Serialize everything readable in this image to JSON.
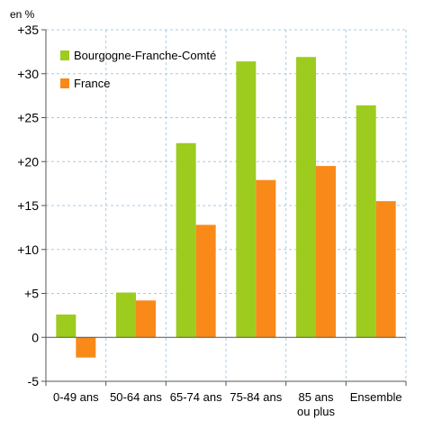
{
  "chart_data": {
    "type": "bar",
    "unit_label": "en %",
    "categories": [
      [
        "0-49 ans"
      ],
      [
        "50-64 ans"
      ],
      [
        "65-74 ans"
      ],
      [
        "75-84 ans"
      ],
      [
        "85 ans",
        "ou plus"
      ],
      [
        "Ensemble"
      ]
    ],
    "series": [
      {
        "name": "Bourgogne-Franche-Comté",
        "color": "#9dcc1f",
        "values": [
          2.6,
          5.1,
          22.1,
          31.4,
          31.9,
          26.4
        ]
      },
      {
        "name": "France",
        "color": "#f98a19",
        "values": [
          -2.3,
          4.2,
          12.8,
          17.9,
          19.5,
          15.5
        ]
      }
    ],
    "yticks": [
      {
        "value": 35,
        "label": "+35"
      },
      {
        "value": 30,
        "label": "+30"
      },
      {
        "value": 25,
        "label": "+25"
      },
      {
        "value": 20,
        "label": "+20"
      },
      {
        "value": 15,
        "label": "+15"
      },
      {
        "value": 10,
        "label": "+10"
      },
      {
        "value": 5,
        "label": "+5"
      },
      {
        "value": 0,
        "label": "0"
      },
      {
        "value": -5,
        "label": "-5"
      }
    ],
    "ylim": [
      -5,
      35
    ],
    "grid": true,
    "legend_position": "top-left",
    "axis_color": "#555555",
    "grid_color": "#a9cbe4"
  }
}
